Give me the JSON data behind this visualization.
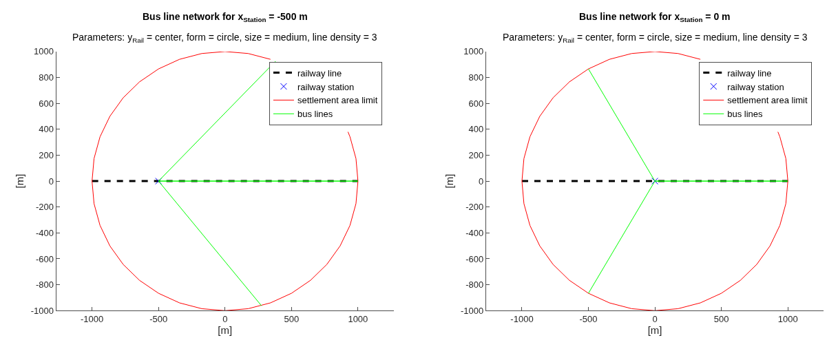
{
  "chart_data": [
    {
      "type": "line",
      "title": "Bus line network for x$_{Station}$ = -500 m",
      "subtitle": "Parameters: y$_{Rail}$ = center, form = circle, size = medium, line density = 3",
      "xlabel": "[m]",
      "ylabel": "[m]",
      "xlim": [
        -1270,
        1270
      ],
      "ylim": [
        -1000,
        1000
      ],
      "xticks": [
        -1000,
        -500,
        0,
        500,
        1000
      ],
      "yticks": [
        -1000,
        -800,
        -600,
        -400,
        -200,
        0,
        200,
        400,
        600,
        800,
        1000
      ],
      "legend": "top right",
      "series": [
        {
          "name": "railway line",
          "color": "#000000",
          "line_style": "dashed",
          "x": [
            -1000,
            1000
          ],
          "values": [
            0,
            0
          ]
        },
        {
          "name": "railway station",
          "type": "scatter",
          "color": "#0000ff",
          "marker": "cross",
          "x": [
            -500
          ],
          "values": [
            0
          ]
        },
        {
          "name": "settlement area limit",
          "color": "#ff0000",
          "line_style": "solid",
          "x": [
            1000,
            985,
            940,
            925,
            null,
            342,
            174,
            0,
            -174,
            -342,
            -500,
            -643,
            -766,
            -866,
            -940,
            -985,
            -1000,
            -985,
            -940,
            -866,
            -766,
            -643,
            -500,
            -342,
            -174,
            0,
            174,
            342,
            500,
            643,
            766,
            866,
            940,
            985,
            1000
          ],
          "values": [
            0,
            174,
            342,
            380,
            null,
            940,
            985,
            1000,
            985,
            940,
            866,
            766,
            643,
            500,
            342,
            174,
            0,
            -174,
            -342,
            -500,
            -643,
            -766,
            -866,
            -940,
            -985,
            -1000,
            -985,
            -940,
            -866,
            -766,
            -643,
            -500,
            -342,
            -174,
            0
          ]
        },
        {
          "name": "bus lines",
          "color": "#00ff00",
          "line_style": "solid",
          "x": [
            380,
            -500,
            1000,
            -500,
            275
          ],
          "values": [
            925,
            0,
            0,
            0,
            -963
          ]
        }
      ]
    },
    {
      "type": "line",
      "title": "Bus line network for x$_{Station}$ = 0 m",
      "subtitle": "Parameters: y$_{Rail}$ = center, form = circle, size = medium, line density = 3",
      "xlabel": "[m]",
      "ylabel": "[m]",
      "xlim": [
        -1270,
        1270
      ],
      "ylim": [
        -1000,
        1000
      ],
      "xticks": [
        -1000,
        -500,
        0,
        500,
        1000
      ],
      "yticks": [
        -1000,
        -800,
        -600,
        -400,
        -200,
        0,
        200,
        400,
        600,
        800,
        1000
      ],
      "legend": "top right",
      "series": [
        {
          "name": "railway line",
          "color": "#000000",
          "line_style": "dashed",
          "x": [
            -1000,
            1000
          ],
          "values": [
            0,
            0
          ]
        },
        {
          "name": "railway station",
          "type": "scatter",
          "color": "#0000ff",
          "marker": "cross",
          "x": [
            0
          ],
          "values": [
            0
          ]
        },
        {
          "name": "settlement area limit",
          "color": "#ff0000",
          "line_style": "solid",
          "x": [
            1000,
            985,
            940,
            925,
            null,
            342,
            174,
            0,
            -174,
            -342,
            -500,
            -643,
            -766,
            -866,
            -940,
            -985,
            -1000,
            -985,
            -940,
            -866,
            -766,
            -643,
            -500,
            -342,
            -174,
            0,
            174,
            342,
            500,
            643,
            766,
            866,
            940,
            985,
            1000
          ],
          "values": [
            0,
            174,
            342,
            380,
            null,
            940,
            985,
            1000,
            985,
            940,
            866,
            766,
            643,
            500,
            342,
            174,
            0,
            -174,
            -342,
            -500,
            -643,
            -766,
            -866,
            -940,
            -985,
            -1000,
            -985,
            -940,
            -866,
            -766,
            -643,
            -500,
            -342,
            -174,
            0
          ]
        },
        {
          "name": "bus lines",
          "color": "#00ff00",
          "line_style": "solid",
          "x": [
            -500,
            0,
            1000,
            0,
            -500
          ],
          "values": [
            866,
            0,
            0,
            0,
            -866
          ]
        }
      ]
    }
  ]
}
